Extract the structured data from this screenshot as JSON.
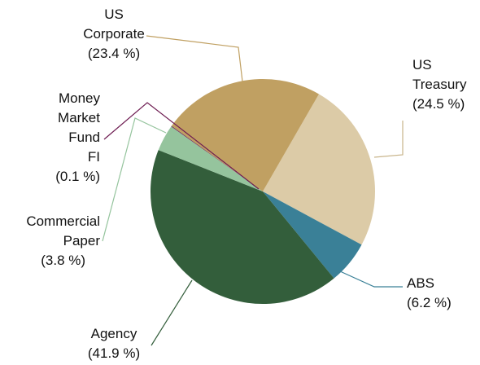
{
  "chart_data": {
    "type": "pie",
    "categories": [
      "US\nTreasury",
      "ABS",
      "Agency",
      "Commercial\nPaper",
      "Money\nMarket\nFund\nFI",
      "US\nCorporate"
    ],
    "values": [
      24.5,
      6.2,
      41.9,
      3.8,
      0.1,
      23.4
    ],
    "value_labels": [
      "(24.5 %)",
      "(6.2 %)",
      "(41.9 %)",
      "(3.8 %)",
      "(0.1 %)",
      "(23.4 %)"
    ],
    "colors": [
      "#dccba7",
      "#3a8097",
      "#335e3b",
      "#95c49d",
      "#6e1d52",
      "#c0a062"
    ]
  }
}
